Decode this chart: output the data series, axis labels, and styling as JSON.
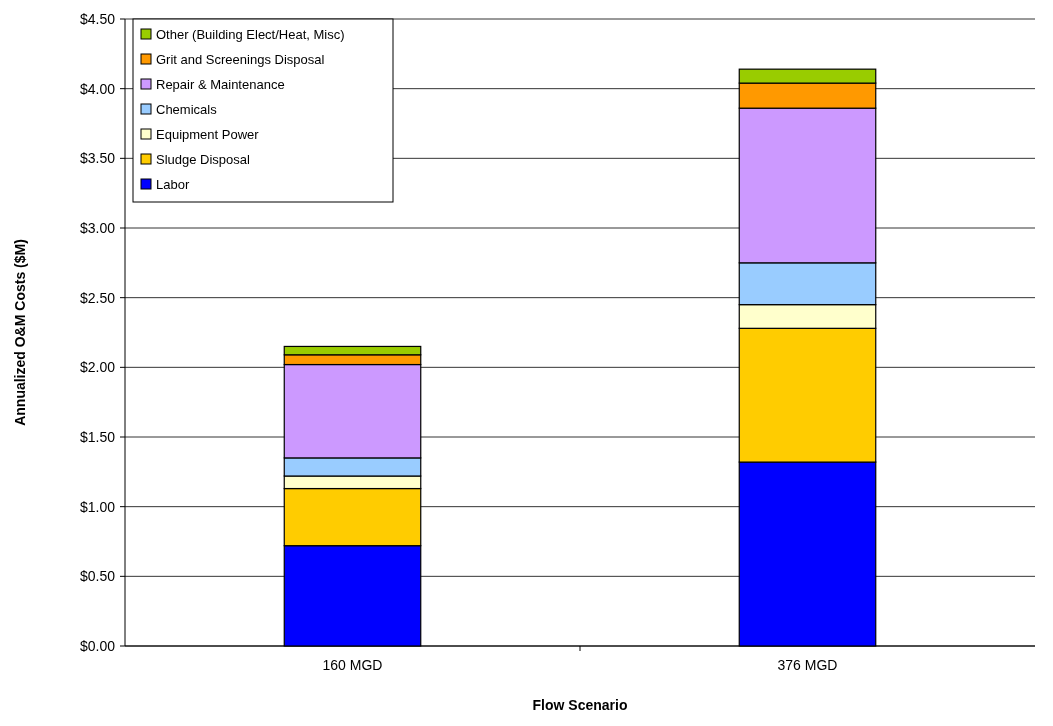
{
  "chart_data": {
    "type": "bar",
    "stacked": true,
    "xlabel": "Flow Scenario",
    "ylabel": "Annualized O&M Costs ($M)",
    "categories": [
      "160 MGD",
      "376 MGD"
    ],
    "series": [
      {
        "name": "Labor",
        "color": "#0000ff",
        "values": [
          0.72,
          1.32
        ]
      },
      {
        "name": "Sludge Disposal",
        "color": "#ffcc00",
        "values": [
          0.41,
          0.96
        ]
      },
      {
        "name": "Equipment Power",
        "color": "#ffffcc",
        "values": [
          0.09,
          0.17
        ]
      },
      {
        "name": "Chemicals",
        "color": "#99ccff",
        "values": [
          0.13,
          0.3
        ]
      },
      {
        "name": "Repair & Maintenance",
        "color": "#cc99ff",
        "values": [
          0.67,
          1.11
        ]
      },
      {
        "name": "Grit and Screenings Disposal",
        "color": "#ff9900",
        "values": [
          0.07,
          0.18
        ]
      },
      {
        "name": "Other (Building Elect/Heat, Misc)",
        "color": "#99cc00",
        "values": [
          0.06,
          0.1
        ]
      }
    ],
    "ylim": [
      0,
      4.5
    ],
    "yticks": [
      {
        "value": 0,
        "label": "$0.00"
      },
      {
        "value": 0.5,
        "label": "$0.50"
      },
      {
        "value": 1,
        "label": "$1.00"
      },
      {
        "value": 1.5,
        "label": "$1.50"
      },
      {
        "value": 2,
        "label": "$2.00"
      },
      {
        "value": 2.5,
        "label": "$2.50"
      },
      {
        "value": 3,
        "label": "$3.00"
      },
      {
        "value": 3.5,
        "label": "$3.50"
      },
      {
        "value": 4,
        "label": "$4.00"
      },
      {
        "value": 4.5,
        "label": "$4.50"
      }
    ],
    "grid": "y",
    "legend": "top left"
  }
}
